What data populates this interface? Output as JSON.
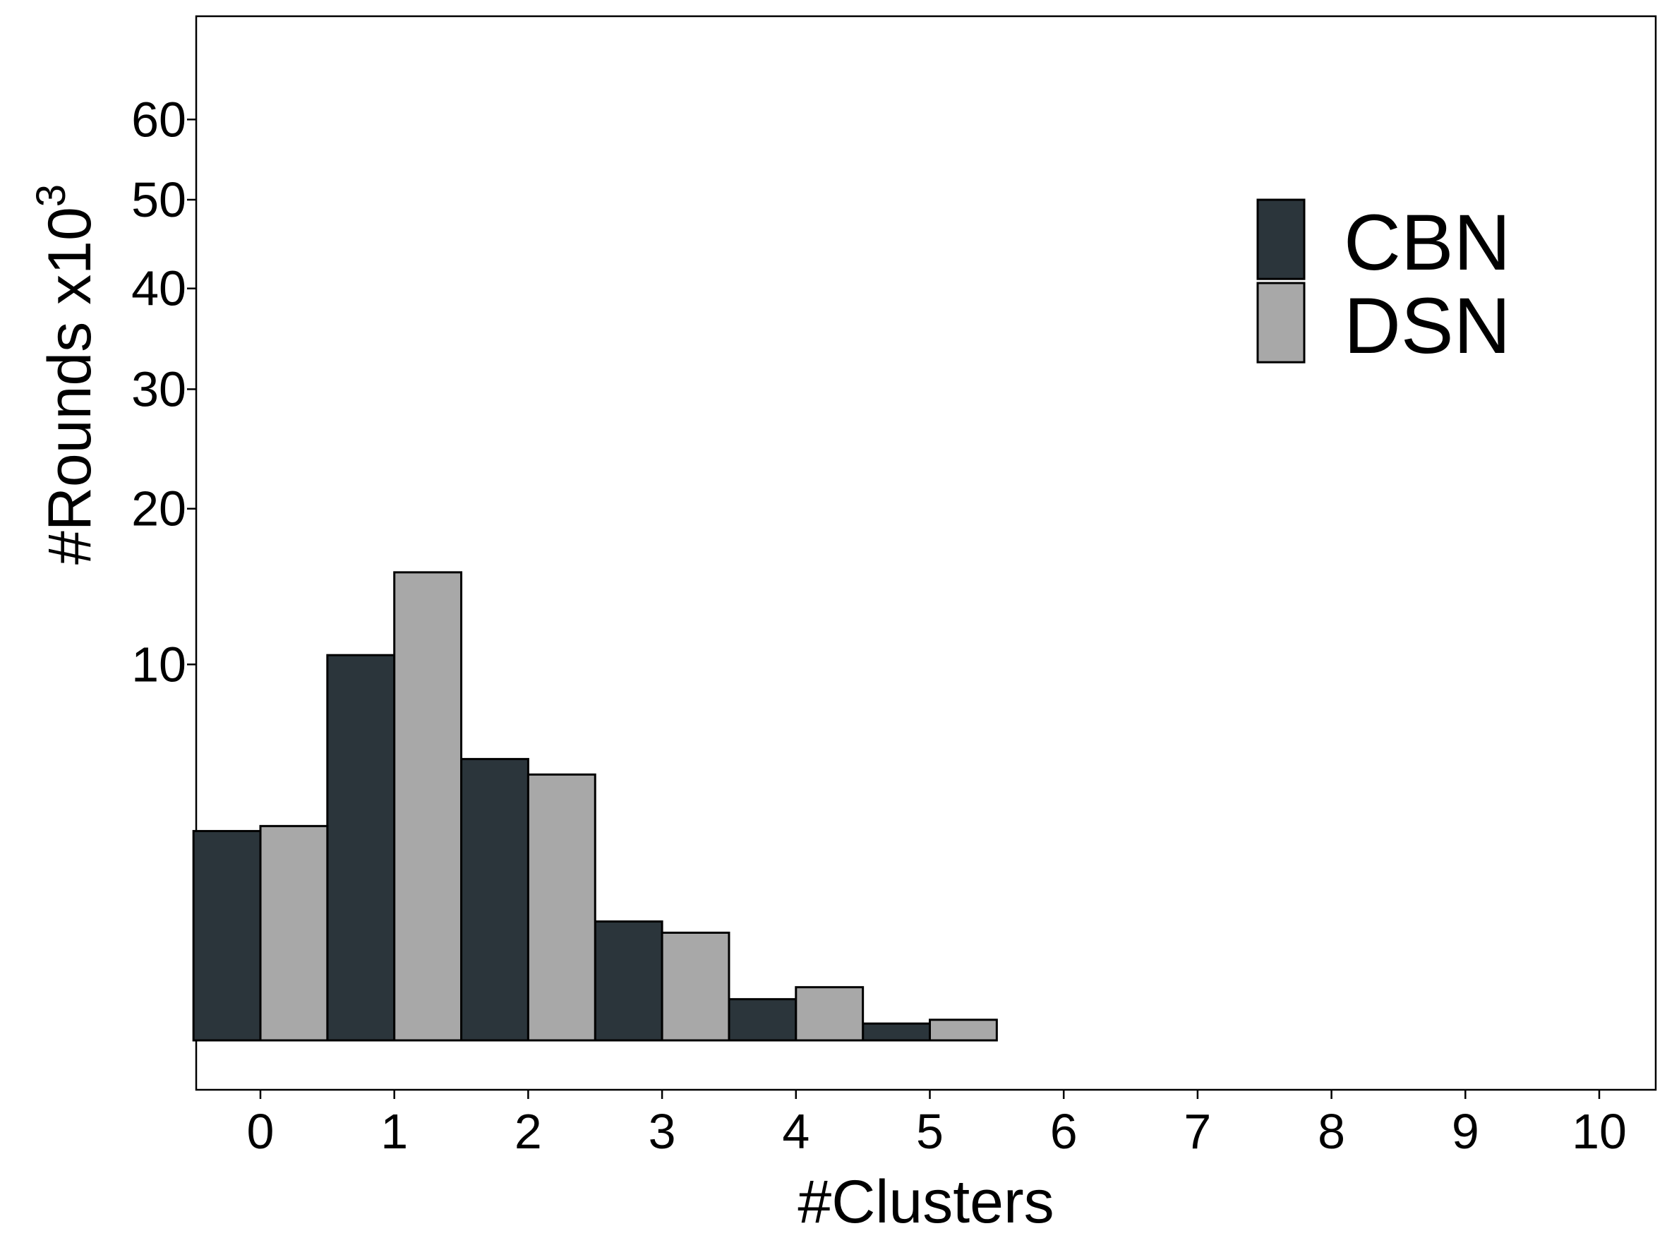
{
  "chart_data": {
    "type": "bar",
    "xlabel": "#Clusters",
    "ylabel": "#Rounds x10",
    "ylabel_superscript": "3",
    "x_ticks": [
      0,
      1,
      2,
      3,
      4,
      5,
      6,
      7,
      8,
      9,
      10
    ],
    "y_ticks": [
      10,
      20,
      30,
      40,
      50,
      60
    ],
    "x_range": [
      -0.5,
      10.5
    ],
    "y_scale": "sqrt",
    "y_range": [
      0,
      65
    ],
    "grid": false,
    "legend_position": "top-right",
    "series": [
      {
        "name": "CBN",
        "color": "#2b353b",
        "x": [
          0,
          1,
          2,
          3,
          4,
          5
        ],
        "values": [
          3.1,
          10.5,
          5.6,
          1.0,
          0.12,
          0.02
        ]
      },
      {
        "name": "DSN",
        "color": "#a8a8a8",
        "x": [
          0,
          1,
          2,
          3,
          4,
          5
        ],
        "values": [
          3.25,
          15.5,
          5.0,
          0.82,
          0.2,
          0.03
        ]
      }
    ]
  }
}
